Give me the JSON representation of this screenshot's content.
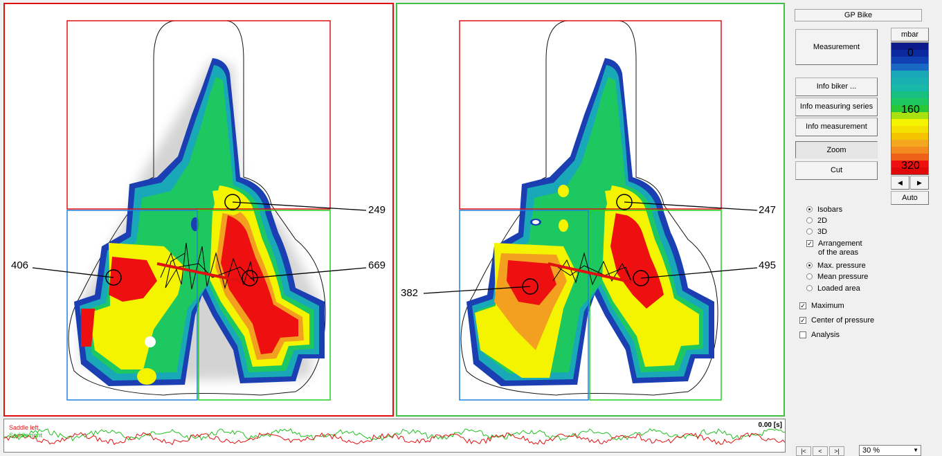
{
  "left_panel": {
    "labels": {
      "top": "249",
      "left": "406",
      "right": "669"
    }
  },
  "right_panel": {
    "labels": {
      "top": "247",
      "left": "382",
      "right": "495"
    }
  },
  "timeline": {
    "series_left": "Saddle left",
    "series_right": "Saddle right",
    "time": "0.00 [s]",
    "colors": {
      "left": "#e01010",
      "right": "#20c020"
    }
  },
  "sidebar": {
    "product": "GP Bike",
    "measurement_button": "Measurement",
    "info_biker_button": "Info biker ...",
    "info_series_button": "Info measuring series",
    "info_measurement_button": "Info measurement",
    "zoom_button": "Zoom",
    "cut_button": "Cut",
    "unit_button": "mbar",
    "auto_button": "Auto",
    "scale_labels": {
      "low": "0",
      "mid": "160",
      "high": "320"
    },
    "view_options": [
      {
        "label": "Isobars",
        "selected": true
      },
      {
        "label": "2D",
        "selected": false
      },
      {
        "label": "3D",
        "selected": false
      }
    ],
    "arrangement_label_1": "Arrangement",
    "arrangement_label_2": "of the areas",
    "arrangement_checked": true,
    "pressure_options": [
      {
        "label": "Max. pressure",
        "selected": true
      },
      {
        "label": "Mean pressure",
        "selected": false
      },
      {
        "label": "Loaded area",
        "selected": false
      }
    ],
    "checks": [
      {
        "label": "Maximum",
        "checked": true
      },
      {
        "label": "Center of pressure",
        "checked": true
      },
      {
        "label": "Analysis",
        "checked": false
      }
    ],
    "nav": {
      "first": "|<",
      "prev": "<",
      "next": ">|"
    },
    "zoom_value": "30 %"
  }
}
